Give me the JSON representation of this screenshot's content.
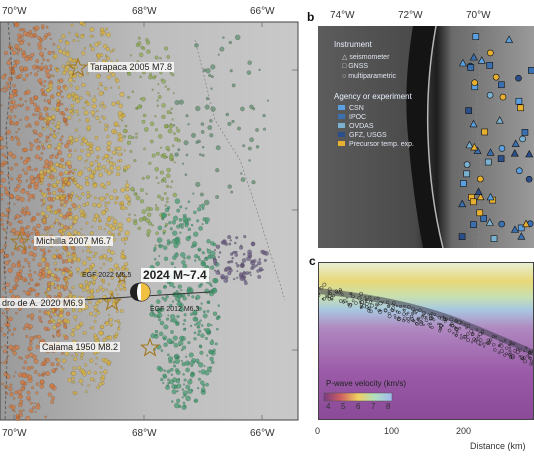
{
  "panel_a": {
    "lon_ticks_top": [
      "70°W",
      "68°W",
      "66°W"
    ],
    "lon_ticks_bottom": [
      "70°W",
      "68°W",
      "66°W"
    ],
    "earthquakes": [
      {
        "label": "Tarapaca 2005 M7.8"
      },
      {
        "label": "Michilla 2007 M6.7"
      },
      {
        "label": "EGF 2022 M5.5"
      },
      {
        "label": "2024 M~7.4"
      },
      {
        "label": "dro de A. 2020 M6.9"
      },
      {
        "label": "EGF 2012 M6.3"
      },
      {
        "label": "Calama 1950 M8.2"
      }
    ]
  },
  "panel_b": {
    "letter": "b",
    "lon_ticks": [
      "74°W",
      "72°W",
      "70°W"
    ],
    "legend": {
      "instrument_title": "Instrument",
      "instruments": [
        "seismometer",
        "GNSS",
        "multiparametric"
      ],
      "agency_title": "Agency or experiment",
      "agencies": [
        {
          "label": "CSN",
          "color": "#5aa0e0"
        },
        {
          "label": "IPOC",
          "color": "#3a6fb0"
        },
        {
          "label": "OVDAS",
          "color": "#7ab0d0"
        },
        {
          "label": "GFZ, USGS",
          "color": "#2a4f8a"
        },
        {
          "label": "Precursor temp. exp.",
          "color": "#e8b030"
        }
      ]
    }
  },
  "panel_c": {
    "letter": "c",
    "colorbar_title": "P-wave velocity (km/s)",
    "colorbar_ticks": [
      "4",
      "5",
      "6",
      "7",
      "8"
    ],
    "x_ticks": [
      "0",
      "100",
      "200"
    ],
    "x_label": "Distance (km)"
  },
  "colors": {
    "orange_zone": "#d4773a",
    "yellow_zone": "#d8b23e",
    "green_zone": "#3f9a6e",
    "purple_zone": "#6a5a80",
    "terrain": "#b8b8b8"
  }
}
